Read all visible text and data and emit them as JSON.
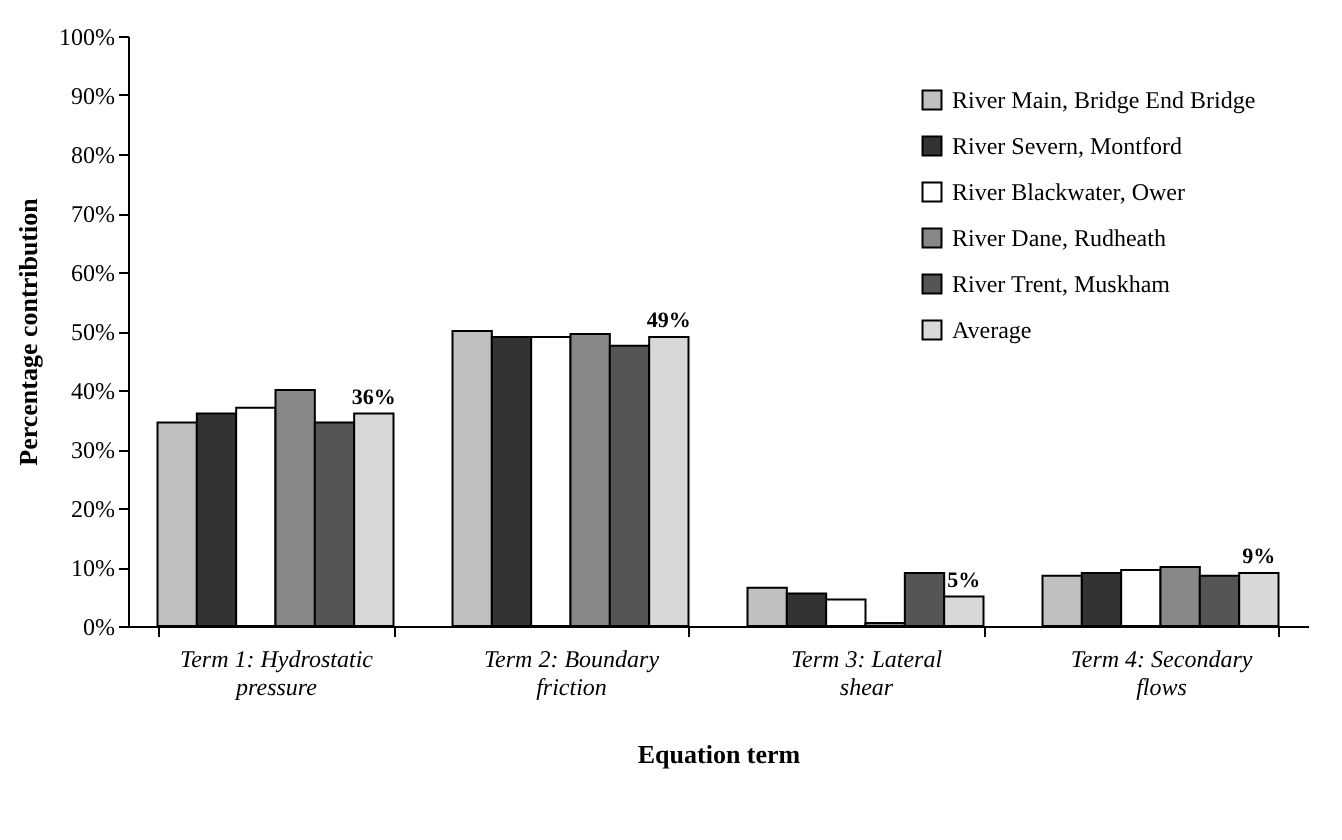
{
  "chart_data": {
    "type": "bar",
    "xlabel": "Equation term",
    "ylabel": "Percentage contribution",
    "categories": [
      "Term 1: Hydrostatic pressure",
      "Term 2: Boundary friction",
      "Term 3: Lateral shear",
      "Term 4: Secondary flows"
    ],
    "series": [
      {
        "name": "River Main, Bridge End Bridge",
        "color": "#c0c0c0",
        "values": [
          34.5,
          50,
          6.5,
          8.5
        ]
      },
      {
        "name": "River Severn, Montford",
        "color": "#333333",
        "values": [
          36,
          49,
          5.5,
          9
        ]
      },
      {
        "name": "River Blackwater, Ower",
        "color": "#ffffff",
        "values": [
          37,
          49,
          4.5,
          9.5
        ]
      },
      {
        "name": "River Dane, Rudheath",
        "color": "#888888",
        "values": [
          40,
          49.5,
          0.5,
          10
        ]
      },
      {
        "name": "River Trent, Muskham",
        "color": "#555555",
        "values": [
          34.5,
          47.5,
          9,
          8.5
        ]
      },
      {
        "name": "Average",
        "color": "#d8d8d8",
        "values": [
          36,
          49,
          5,
          9
        ],
        "value_labels": [
          "36%",
          "49%",
          "5%",
          "9%"
        ]
      }
    ],
    "ylim": [
      0,
      100
    ],
    "yticks": [
      {
        "value": 0,
        "label": "0%"
      },
      {
        "value": 10,
        "label": "10%"
      },
      {
        "value": 20,
        "label": "20%"
      },
      {
        "value": 30,
        "label": "30%"
      },
      {
        "value": 40,
        "label": "40%"
      },
      {
        "value": 50,
        "label": "50%"
      },
      {
        "value": 60,
        "label": "60%"
      },
      {
        "value": 70,
        "label": "70%"
      },
      {
        "value": 80,
        "label": "80%"
      },
      {
        "value": 90,
        "label": "90%"
      },
      {
        "value": 100,
        "label": "100%"
      }
    ],
    "grid": false,
    "legend": "top right"
  }
}
